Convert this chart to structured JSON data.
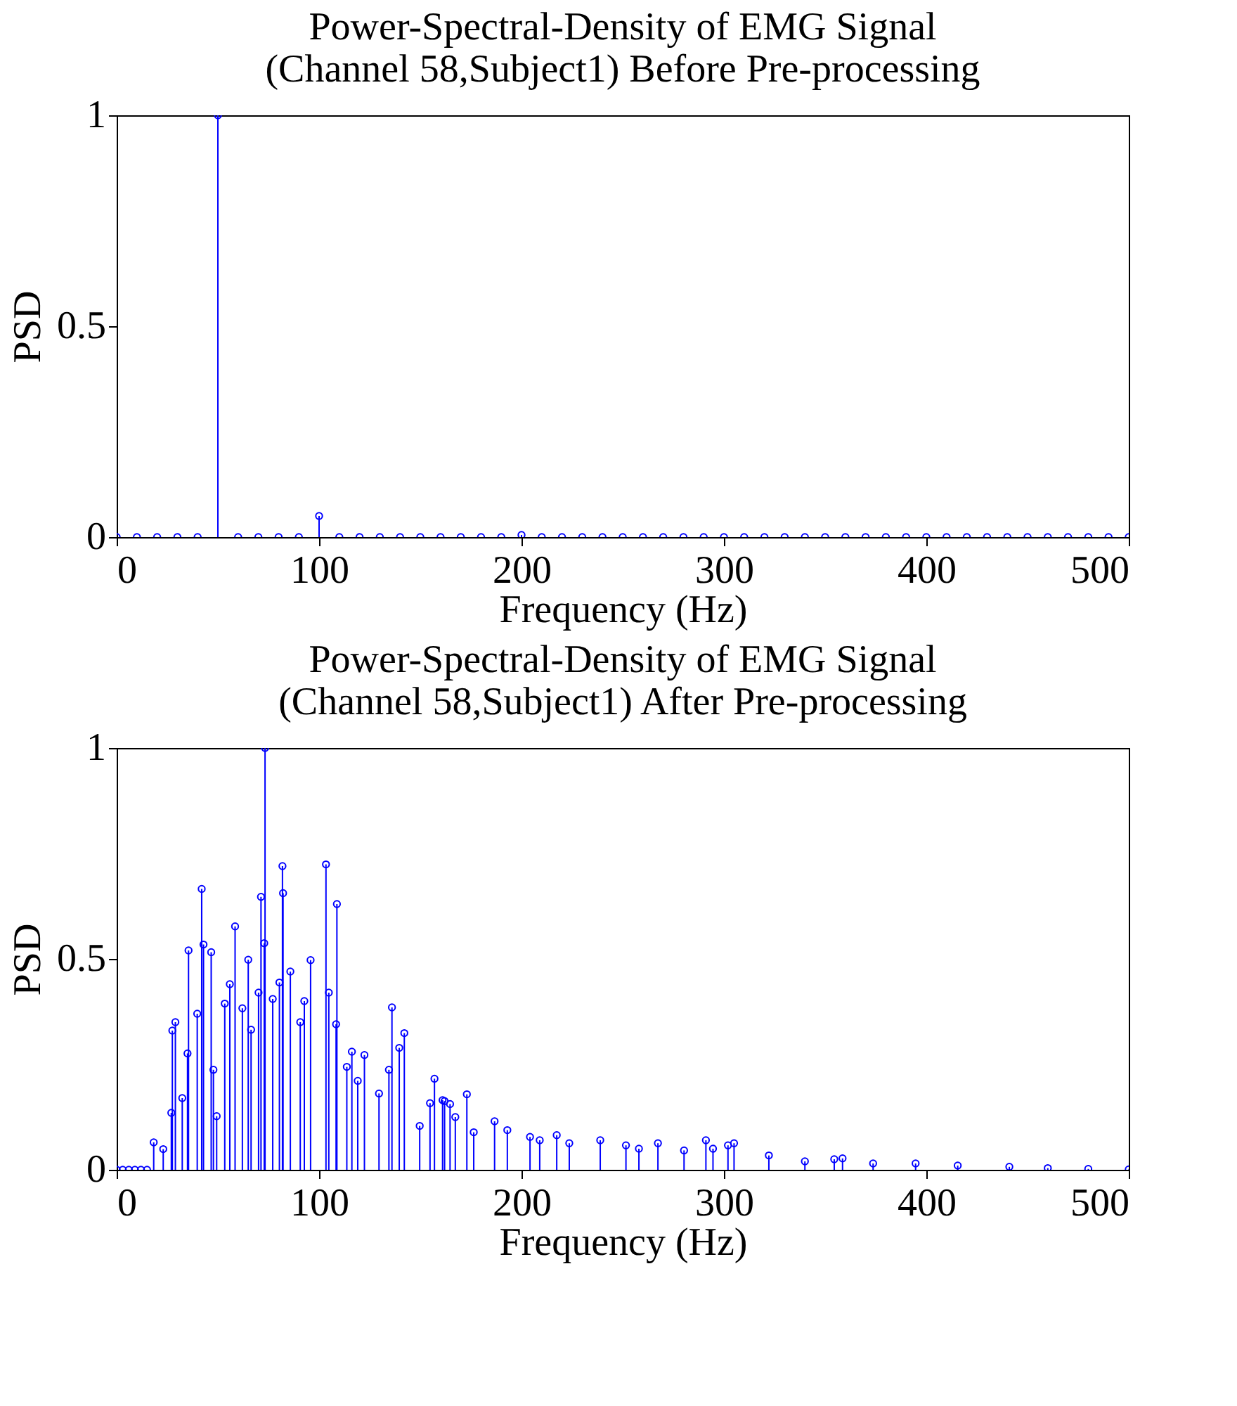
{
  "chart_data": [
    {
      "type": "lollipop",
      "title": "Power-Spectral-Density of EMG Signal\n(Channel 58,Subject1) Before Pre-processing",
      "xlabel": "Frequency (Hz)",
      "ylabel": "PSD",
      "xlim": [
        0,
        500
      ],
      "ylim": [
        0,
        1
      ],
      "xticks": [
        0,
        100,
        200,
        300,
        400,
        500
      ],
      "yticks": [
        0,
        0.5,
        1
      ],
      "grid": false,
      "marker": "circle",
      "series": [
        {
          "color": "#0000ff",
          "x": [
            0,
            10,
            20,
            30,
            40,
            50,
            60,
            70,
            80,
            90,
            100,
            110,
            120,
            130,
            140,
            150,
            160,
            170,
            180,
            190,
            200,
            210,
            220,
            230,
            240,
            250,
            260,
            270,
            280,
            290,
            300,
            310,
            320,
            330,
            340,
            350,
            360,
            370,
            380,
            390,
            400,
            410,
            420,
            430,
            440,
            450,
            460,
            470,
            480,
            490,
            500
          ],
          "values": [
            0,
            0,
            0,
            0,
            0,
            1,
            0,
            0,
            0,
            0,
            0.05,
            0,
            0,
            0,
            0,
            0,
            0,
            0,
            0,
            0,
            0.005,
            0,
            0,
            0,
            0,
            0,
            0,
            0,
            0,
            0,
            0,
            0,
            0,
            0,
            0,
            0,
            0,
            0,
            0,
            0,
            0,
            0,
            0,
            0,
            0,
            0,
            0,
            0,
            0,
            0,
            0
          ]
        }
      ]
    },
    {
      "type": "lollipop",
      "title": "Power-Spectral-Density of EMG Signal\n(Channel 58,Subject1) After Pre-processing",
      "xlabel": "Frequency (Hz)",
      "ylabel": "PSD",
      "xlim": [
        0,
        500
      ],
      "ylim": [
        0,
        1
      ],
      "xticks": [
        0,
        100,
        200,
        300,
        400,
        500
      ],
      "yticks": [
        0,
        0.5,
        1
      ],
      "grid": false,
      "marker": "circle",
      "series": [
        {
          "color": "#0000ff",
          "x": [
            0,
            3,
            6,
            9,
            12,
            15,
            18.3,
            23,
            27,
            27.5,
            29,
            32.4,
            35,
            35.5,
            39.8,
            42,
            42.9,
            46.7,
            47.8,
            49.4,
            53.4,
            55.9,
            58.5,
            62.1,
            65,
            66.4,
            70.1,
            71.3,
            72.9,
            73.3,
            77.1,
            80.4,
            81.9,
            82.2,
            85.8,
            90.7,
            92.7,
            95.8,
            103.4,
            104.8,
            108.4,
            108.8,
            113.7,
            116.2,
            119.1,
            122.4,
            129.6,
            134.5,
            136,
            139.6,
            142.1,
            149.7,
            154.8,
            157,
            161,
            162,
            164.7,
            167.3,
            173,
            176.4,
            186.7,
            193,
            204.2,
            209,
            217.4,
            223.6,
            238.9,
            251.6,
            258,
            267.4,
            280.3,
            291.1,
            294.6,
            302,
            305,
            322.2,
            340,
            354.5,
            358.6,
            373.7,
            394.7,
            415.5,
            441,
            460,
            480,
            500
          ],
          "values": [
            0,
            0,
            0,
            0,
            0,
            0,
            0.065,
            0.049,
            0.135,
            0.33,
            0.35,
            0.17,
            0.276,
            0.52,
            0.37,
            0.666,
            0.534,
            0.516,
            0.237,
            0.127,
            0.394,
            0.44,
            0.577,
            0.383,
            0.498,
            0.332,
            0.42,
            0.647,
            0.537,
            1,
            0.405,
            0.444,
            0.72,
            0.656,
            0.47,
            0.35,
            0.4,
            0.497,
            0.724,
            0.42,
            0.345,
            0.63,
            0.244,
            0.28,
            0.211,
            0.272,
            0.181,
            0.237,
            0.385,
            0.289,
            0.324,
            0.104,
            0.158,
            0.216,
            0.165,
            0.163,
            0.156,
            0.125,
            0.179,
            0.089,
            0.115,
            0.094,
            0.078,
            0.07,
            0.082,
            0.063,
            0.07,
            0.058,
            0.05,
            0.063,
            0.046,
            0.07,
            0.05,
            0.058,
            0.063,
            0.034,
            0.02,
            0.025,
            0.027,
            0.015,
            0.015,
            0.01,
            0.007,
            0.004,
            0.002,
            0.001
          ]
        }
      ]
    }
  ]
}
